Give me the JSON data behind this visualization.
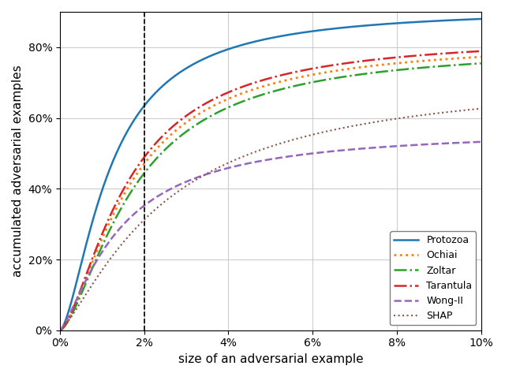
{
  "title": "",
  "xlabel": "size of an adversarial example",
  "ylabel": "accumulated adversarial examples",
  "xlim": [
    0,
    0.1
  ],
  "ylim": [
    0,
    0.9
  ],
  "vline_x": 0.02,
  "xticks": [
    0.0,
    0.02,
    0.04,
    0.06,
    0.08,
    0.1
  ],
  "yticks": [
    0.0,
    0.2,
    0.4,
    0.6,
    0.8
  ],
  "series": [
    {
      "name": "Protozoa",
      "color": "#1f77b4",
      "linestyle": "-",
      "linewidth": 1.8,
      "a": 0.91,
      "b": 0.35,
      "c": 0.001
    },
    {
      "name": "Ochiai",
      "color": "#ff7f0e",
      "linestyle": ":",
      "linewidth": 2.0,
      "a": 0.82,
      "b": 0.42,
      "c": 0.001
    },
    {
      "name": "Zoltar",
      "color": "#2ca02c",
      "linestyle": "-.",
      "linewidth": 1.8,
      "a": 0.8,
      "b": 0.42,
      "c": 0.001
    },
    {
      "name": "Tarantula",
      "color": "#d62728",
      "linestyle": "-.",
      "linewidth": 1.8,
      "a": 0.83,
      "b": 0.42,
      "c": 0.001
    },
    {
      "name": "Wong-II",
      "color": "#9467bd",
      "linestyle": "--",
      "linewidth": 1.8,
      "a": 0.57,
      "b": 0.5,
      "c": 0.001
    },
    {
      "name": "SHAP",
      "color": "#8c564b",
      "linestyle": ":",
      "linewidth": 1.5,
      "a": 0.72,
      "b": 0.55,
      "c": 0.001
    }
  ],
  "legend_loc": "lower right",
  "grid_color": "#cccccc",
  "figure_size": [
    6.4,
    4.78
  ],
  "dpi": 100
}
